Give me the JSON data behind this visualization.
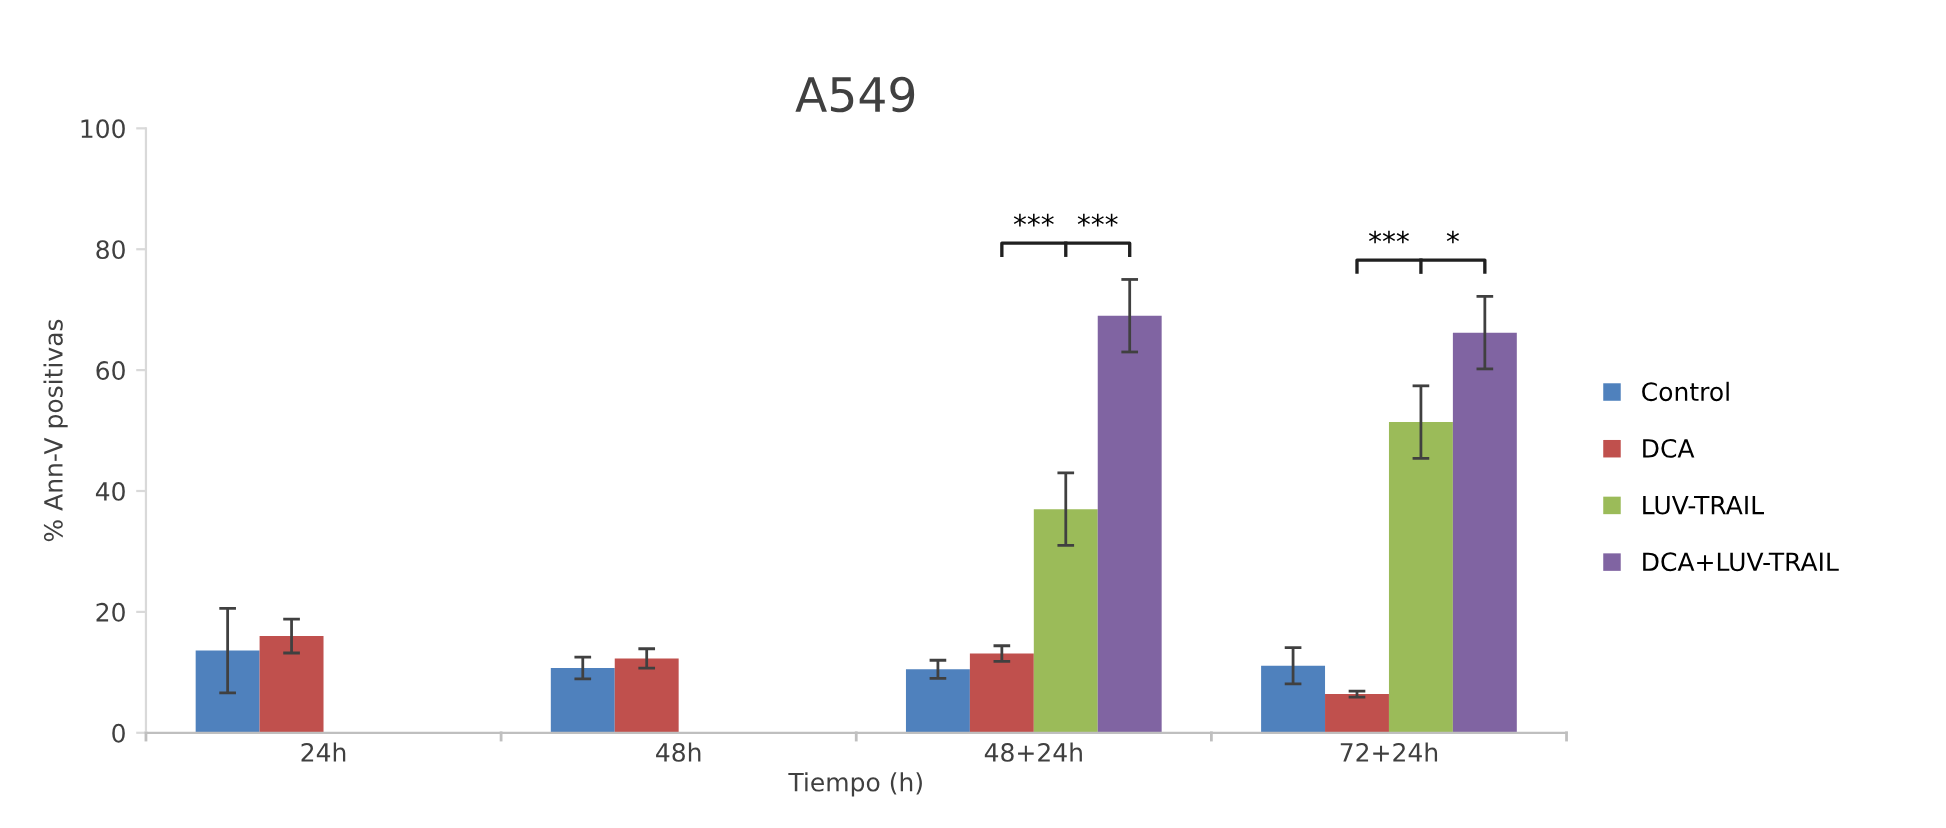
{
  "chart_data": {
    "type": "bar",
    "title": "A549",
    "xlabel": "Tiempo (h)",
    "ylabel": "% Ann-V positivas",
    "categories": [
      "24h",
      "48h",
      "48+24h",
      "72+24h"
    ],
    "series": [
      {
        "name": "Control",
        "color": "#4f81bd",
        "values": [
          13.6,
          10.7,
          10.5,
          11.1
        ],
        "errors": [
          7,
          1.8,
          1.5,
          3
        ]
      },
      {
        "name": "DCA",
        "color": "#c0504d",
        "values": [
          16,
          12.3,
          13.1,
          6.4
        ],
        "errors": [
          2.8,
          1.6,
          1.3,
          0.5
        ]
      },
      {
        "name": "LUV-TRAIL",
        "color": "#9bbb59",
        "values": [
          null,
          null,
          37,
          51.4
        ],
        "errors": [
          null,
          null,
          6,
          6
        ]
      },
      {
        "name": "DCA+LUV-TRAIL",
        "color": "#8064a2",
        "values": [
          null,
          null,
          69,
          66.2
        ],
        "errors": [
          null,
          null,
          6,
          6
        ]
      }
    ],
    "ylim": [
      0,
      100
    ],
    "yticks": [
      0,
      20,
      40,
      60,
      80,
      100
    ],
    "grid": false,
    "legend": "right",
    "annotations": [
      "***",
      "***",
      "***",
      "*"
    ]
  }
}
